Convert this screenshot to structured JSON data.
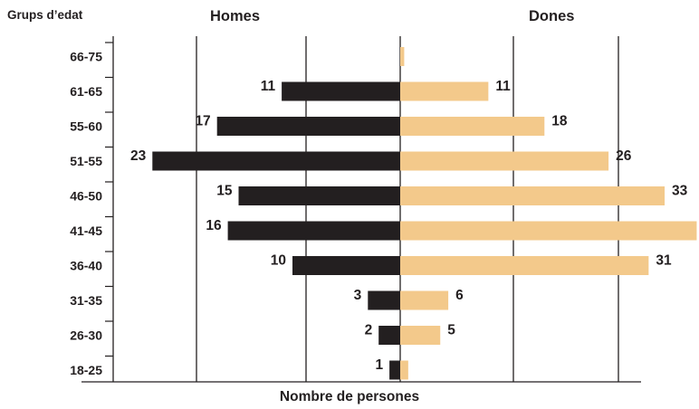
{
  "chart_data": {
    "type": "bar",
    "orientation": "horizontal",
    "layout": "population-pyramid",
    "y_title": "Grups d’edat",
    "x_title": "Nombre de persones",
    "left_title": "Homes",
    "right_title": "Dones",
    "categories": [
      "66-75",
      "61-65",
      "55-60",
      "51-55",
      "46-50",
      "41-45",
      "36-40",
      "31-35",
      "26-30",
      "18-25"
    ],
    "series": [
      {
        "name": "Homes",
        "values": [
          0,
          11,
          17,
          23,
          15,
          16,
          10,
          3,
          2,
          1
        ],
        "labels": [
          "",
          "11",
          "17",
          "23",
          "15",
          "16",
          "10",
          "3",
          "2",
          "1"
        ],
        "color": "#231f20"
      },
      {
        "name": "Dones",
        "values": [
          0.5,
          11,
          18,
          26,
          33,
          37,
          31,
          6,
          5,
          1
        ],
        "labels": [
          "",
          "11",
          "18",
          "26",
          "33",
          "",
          "31",
          "6",
          "5",
          ""
        ],
        "color": "#f3c98b"
      }
    ],
    "grid": "vertical",
    "axis_color": "#231f20"
  }
}
